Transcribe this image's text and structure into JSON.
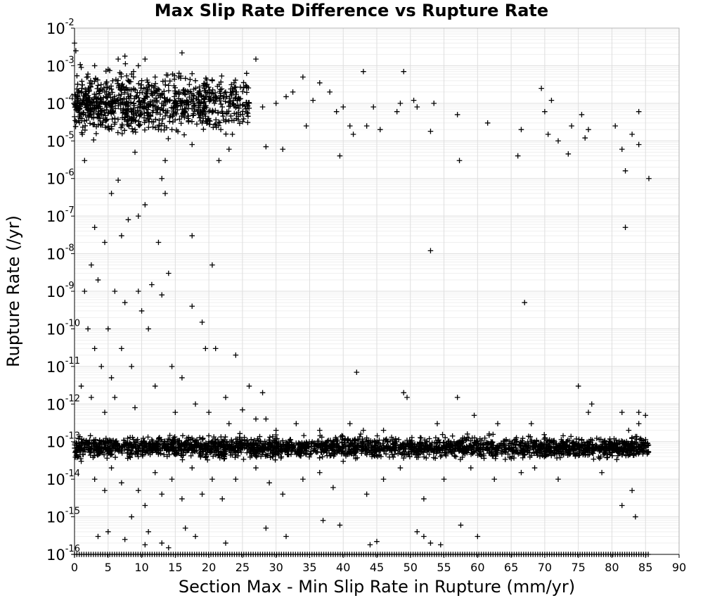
{
  "chart_data": {
    "type": "scatter",
    "title": "Max Slip Rate Difference vs Rupture Rate",
    "xlabel": "Section Max - Min Slip Rate in Rupture (mm/yr)",
    "ylabel": "Rupture Rate (/yr)",
    "xlim": [
      0,
      90
    ],
    "ylim": [
      1e-16,
      0.01
    ],
    "y_scale": "log",
    "grid": true,
    "marker": "+",
    "marker_color": "#000000",
    "x_ticks": [
      0,
      5,
      10,
      15,
      20,
      25,
      30,
      35,
      40,
      45,
      50,
      55,
      60,
      65,
      70,
      75,
      80,
      85,
      90
    ],
    "y_ticks": [
      {
        "base": "10",
        "exp": "-2",
        "value": 0.01
      },
      {
        "base": "10",
        "exp": "-3",
        "value": 0.001
      },
      {
        "base": "10",
        "exp": "-4",
        "value": 0.0001
      },
      {
        "base": "10",
        "exp": "-5",
        "value": 1e-05
      },
      {
        "base": "10",
        "exp": "-6",
        "value": 1e-06
      },
      {
        "base": "10",
        "exp": "-7",
        "value": 1e-07
      },
      {
        "base": "10",
        "exp": "-8",
        "value": 1e-08
      },
      {
        "base": "10",
        "exp": "-9",
        "value": 1e-09
      },
      {
        "base": "10",
        "exp": "-10",
        "value": 1e-10
      },
      {
        "base": "10",
        "exp": "-11",
        "value": 1e-11
      },
      {
        "base": "10",
        "exp": "-12",
        "value": 1e-12
      },
      {
        "base": "10",
        "exp": "-13",
        "value": 1e-13
      },
      {
        "base": "10",
        "exp": "-14",
        "value": 1e-14
      },
      {
        "base": "10",
        "exp": "-15",
        "value": 1e-15
      },
      {
        "base": "10",
        "exp": "-16",
        "value": 1e-16
      }
    ],
    "points": [
      [
        0.0,
        0.004
      ],
      [
        0.2,
        0.0025
      ],
      [
        0.5,
        0.00015
      ],
      [
        1.0,
        0.0009
      ],
      [
        1.5,
        3e-06
      ],
      [
        2.0,
        0.0006
      ],
      [
        2.5,
        0.0001
      ],
      [
        3.0,
        0.001
      ],
      [
        3.5,
        0.0003
      ],
      [
        4.0,
        5e-05
      ],
      [
        4.5,
        0.0002
      ],
      [
        5.0,
        0.0008
      ],
      [
        5.5,
        0.0001
      ],
      [
        6.0,
        4e-05
      ],
      [
        6.5,
        0.0015
      ],
      [
        7.0,
        0.0003
      ],
      [
        7.5,
        0.0018
      ],
      [
        8.0,
        0.0001
      ],
      [
        8.5,
        0.0006
      ],
      [
        9.0,
        2e-05
      ],
      [
        9.5,
        0.001
      ],
      [
        10.0,
        0.0004
      ],
      [
        10.5,
        0.0015
      ],
      [
        11.0,
        8e-05
      ],
      [
        11.5,
        0.0003
      ],
      [
        12.0,
        0.0005
      ],
      [
        12.5,
        2e-05
      ],
      [
        13.0,
        0.0001
      ],
      [
        13.5,
        3e-06
      ],
      [
        14.0,
        0.0003
      ],
      [
        14.5,
        2e-05
      ],
      [
        15.0,
        0.0001
      ],
      [
        15.5,
        0.0005
      ],
      [
        16.0,
        0.0022
      ],
      [
        16.5,
        6e-05
      ],
      [
        17.0,
        0.0002
      ],
      [
        17.5,
        8e-06
      ],
      [
        18.0,
        0.0004
      ],
      [
        18.5,
        0.0001
      ],
      [
        19.0,
        3e-05
      ],
      [
        19.5,
        0.0002
      ],
      [
        20.0,
        6e-05
      ],
      [
        20.5,
        0.0004
      ],
      [
        21.0,
        0.00015
      ],
      [
        21.5,
        3e-06
      ],
      [
        22.0,
        8e-05
      ],
      [
        22.5,
        0.0002
      ],
      [
        23.0,
        6e-06
      ],
      [
        23.5,
        1.5e-05
      ],
      [
        24.0,
        0.0002
      ],
      [
        25.0,
        5e-05
      ],
      [
        25.5,
        0.0003
      ],
      [
        26.0,
        0.0001
      ],
      [
        27.0,
        0.0015
      ],
      [
        28.0,
        8e-05
      ],
      [
        28.5,
        7e-06
      ],
      [
        30.0,
        0.0001
      ],
      [
        31.0,
        6e-06
      ],
      [
        31.5,
        0.00015
      ],
      [
        32.5,
        0.0002
      ],
      [
        34.0,
        0.0005
      ],
      [
        34.5,
        2.5e-05
      ],
      [
        35.5,
        0.00012
      ],
      [
        36.5,
        0.00035
      ],
      [
        38.0,
        0.0002
      ],
      [
        39.0,
        6e-05
      ],
      [
        39.5,
        4e-06
      ],
      [
        40.0,
        8e-05
      ],
      [
        41.0,
        2.5e-05
      ],
      [
        41.5,
        1.5e-05
      ],
      [
        43.0,
        0.0007
      ],
      [
        43.5,
        2.5e-05
      ],
      [
        44.5,
        8e-05
      ],
      [
        45.5,
        2e-05
      ],
      [
        48.0,
        6e-05
      ],
      [
        48.5,
        0.0001
      ],
      [
        49.0,
        0.0007
      ],
      [
        50.5,
        0.00012
      ],
      [
        51.0,
        8e-05
      ],
      [
        53.0,
        1.8e-05
      ],
      [
        53.5,
        0.0001
      ],
      [
        57.0,
        5e-05
      ],
      [
        57.3,
        3e-06
      ],
      [
        61.5,
        3e-05
      ],
      [
        66.0,
        4e-06
      ],
      [
        66.5,
        2e-05
      ],
      [
        69.5,
        0.00025
      ],
      [
        70.0,
        6e-05
      ],
      [
        70.5,
        1.5e-05
      ],
      [
        71.0,
        0.00012
      ],
      [
        72.0,
        1e-05
      ],
      [
        73.5,
        4.5e-06
      ],
      [
        74.0,
        2.5e-05
      ],
      [
        75.5,
        5e-05
      ],
      [
        76.0,
        1.2e-05
      ],
      [
        76.5,
        2e-05
      ],
      [
        80.5,
        2.5e-05
      ],
      [
        81.5,
        6e-06
      ],
      [
        82.0,
        1.6e-06
      ],
      [
        83.0,
        1.5e-05
      ],
      [
        84.0,
        6e-05
      ],
      [
        84.0,
        8e-06
      ],
      [
        85.5,
        1e-06
      ],
      [
        82.0,
        5e-08
      ],
      [
        3.0,
        5e-08
      ],
      [
        4.5,
        2e-08
      ],
      [
        5.5,
        4e-07
      ],
      [
        6.5,
        9e-07
      ],
      [
        7.0,
        3e-08
      ],
      [
        8.0,
        8e-08
      ],
      [
        9.5,
        1e-07
      ],
      [
        10.5,
        2e-07
      ],
      [
        12.5,
        2e-08
      ],
      [
        13.5,
        4e-07
      ],
      [
        17.5,
        3e-08
      ],
      [
        20.5,
        5e-09
      ],
      [
        13.0,
        1e-06
      ],
      [
        9.0,
        5e-06
      ],
      [
        1.5,
        1e-09
      ],
      [
        2.5,
        5e-09
      ],
      [
        3.5,
        2e-09
      ],
      [
        5.0,
        1e-10
      ],
      [
        6.0,
        1e-09
      ],
      [
        7.5,
        5e-10
      ],
      [
        9.5,
        1e-09
      ],
      [
        11.5,
        1.5e-09
      ],
      [
        13.0,
        8e-10
      ],
      [
        14.0,
        3e-09
      ],
      [
        17.5,
        4e-10
      ],
      [
        53.0,
        1.2e-08
      ],
      [
        67.0,
        5e-10
      ],
      [
        2.0,
        1e-10
      ],
      [
        3.0,
        3e-11
      ],
      [
        4.0,
        1e-11
      ],
      [
        5.5,
        5e-12
      ],
      [
        7.0,
        3e-11
      ],
      [
        8.5,
        1e-11
      ],
      [
        10.0,
        3e-10
      ],
      [
        11.0,
        1e-10
      ],
      [
        14.5,
        1e-11
      ],
      [
        16.0,
        5e-12
      ],
      [
        19.0,
        1.5e-10
      ],
      [
        19.5,
        3e-11
      ],
      [
        21.0,
        3e-11
      ],
      [
        24.0,
        2e-11
      ],
      [
        26.0,
        3e-12
      ],
      [
        28.0,
        2e-12
      ],
      [
        42.0,
        7e-12
      ],
      [
        49.0,
        2e-12
      ],
      [
        57.0,
        1.5e-12
      ],
      [
        75.0,
        3e-12
      ],
      [
        77.0,
        1e-12
      ],
      [
        1.0,
        3e-12
      ],
      [
        2.5,
        1.5e-12
      ],
      [
        4.5,
        6e-13
      ],
      [
        6.0,
        1.5e-12
      ],
      [
        9.0,
        8e-13
      ],
      [
        12.0,
        3e-12
      ],
      [
        15.0,
        6e-13
      ],
      [
        18.0,
        1e-12
      ],
      [
        20.0,
        6e-13
      ],
      [
        22.5,
        1.5e-12
      ],
      [
        23.0,
        3e-13
      ],
      [
        25.0,
        7e-13
      ],
      [
        27.0,
        4e-13
      ],
      [
        28.5,
        4e-13
      ],
      [
        30.0,
        2e-13
      ],
      [
        33.0,
        3e-13
      ],
      [
        36.5,
        2e-13
      ],
      [
        41.0,
        3e-13
      ],
      [
        43.0,
        2e-13
      ],
      [
        46.0,
        2e-13
      ],
      [
        49.5,
        1.5e-12
      ],
      [
        54.0,
        3e-13
      ],
      [
        59.5,
        5e-13
      ],
      [
        63.0,
        3e-13
      ],
      [
        68.0,
        3e-13
      ],
      [
        76.5,
        6e-13
      ],
      [
        81.5,
        6e-13
      ],
      [
        82.5,
        2e-13
      ],
      [
        84.0,
        6e-13
      ],
      [
        84.0,
        3e-13
      ],
      [
        85.0,
        5e-13
      ],
      [
        1.0,
        3e-14
      ],
      [
        3.0,
        1e-14
      ],
      [
        4.5,
        5e-15
      ],
      [
        5.5,
        2e-14
      ],
      [
        7.0,
        8e-15
      ],
      [
        8.5,
        1e-15
      ],
      [
        9.5,
        5e-15
      ],
      [
        10.5,
        2e-15
      ],
      [
        12.0,
        1.5e-14
      ],
      [
        13.0,
        4e-15
      ],
      [
        14.5,
        1e-14
      ],
      [
        16.0,
        3e-15
      ],
      [
        17.5,
        2e-14
      ],
      [
        19.0,
        4e-15
      ],
      [
        20.5,
        1e-14
      ],
      [
        22.0,
        3e-15
      ],
      [
        24.0,
        1e-14
      ],
      [
        27.0,
        2e-14
      ],
      [
        29.0,
        8e-15
      ],
      [
        31.0,
        4e-15
      ],
      [
        34.0,
        1e-14
      ],
      [
        36.5,
        1.5e-14
      ],
      [
        38.5,
        6e-15
      ],
      [
        40.0,
        3e-14
      ],
      [
        43.5,
        4e-15
      ],
      [
        46.0,
        1e-14
      ],
      [
        48.5,
        2e-14
      ],
      [
        52.0,
        3e-15
      ],
      [
        55.0,
        1e-14
      ],
      [
        59.0,
        2e-14
      ],
      [
        62.5,
        1e-14
      ],
      [
        66.5,
        1.5e-14
      ],
      [
        68.5,
        2e-14
      ],
      [
        72.0,
        1e-14
      ],
      [
        78.5,
        1.5e-14
      ],
      [
        81.5,
        2e-15
      ],
      [
        83.0,
        5e-15
      ],
      [
        83.5,
        1e-15
      ],
      [
        3.5,
        3e-16
      ],
      [
        5.0,
        4e-16
      ],
      [
        7.5,
        2.5e-16
      ],
      [
        10.5,
        1.8e-16
      ],
      [
        13.0,
        2e-16
      ],
      [
        14.0,
        1.5e-16
      ],
      [
        22.5,
        2e-16
      ],
      [
        31.5,
        3e-16
      ],
      [
        37.0,
        8e-16
      ],
      [
        39.5,
        6e-16
      ],
      [
        44.0,
        1.8e-16
      ],
      [
        45.0,
        2.2e-16
      ],
      [
        51.0,
        4e-16
      ],
      [
        52.0,
        3e-16
      ],
      [
        53.0,
        2e-16
      ],
      [
        54.5,
        1.8e-16
      ],
      [
        57.5,
        6e-16
      ],
      [
        60.0,
        3e-16
      ],
      [
        11.0,
        4e-16
      ],
      [
        16.5,
        5e-16
      ],
      [
        18.0,
        3e-16
      ],
      [
        28.5,
        5e-16
      ]
    ],
    "dense_band": {
      "x_range": [
        0,
        85.5
      ],
      "y_center": 7e-14,
      "y_spread_log10": 0.25
    },
    "bottom_floor": {
      "x_range": [
        0,
        85.5
      ],
      "y": 1e-16
    }
  }
}
